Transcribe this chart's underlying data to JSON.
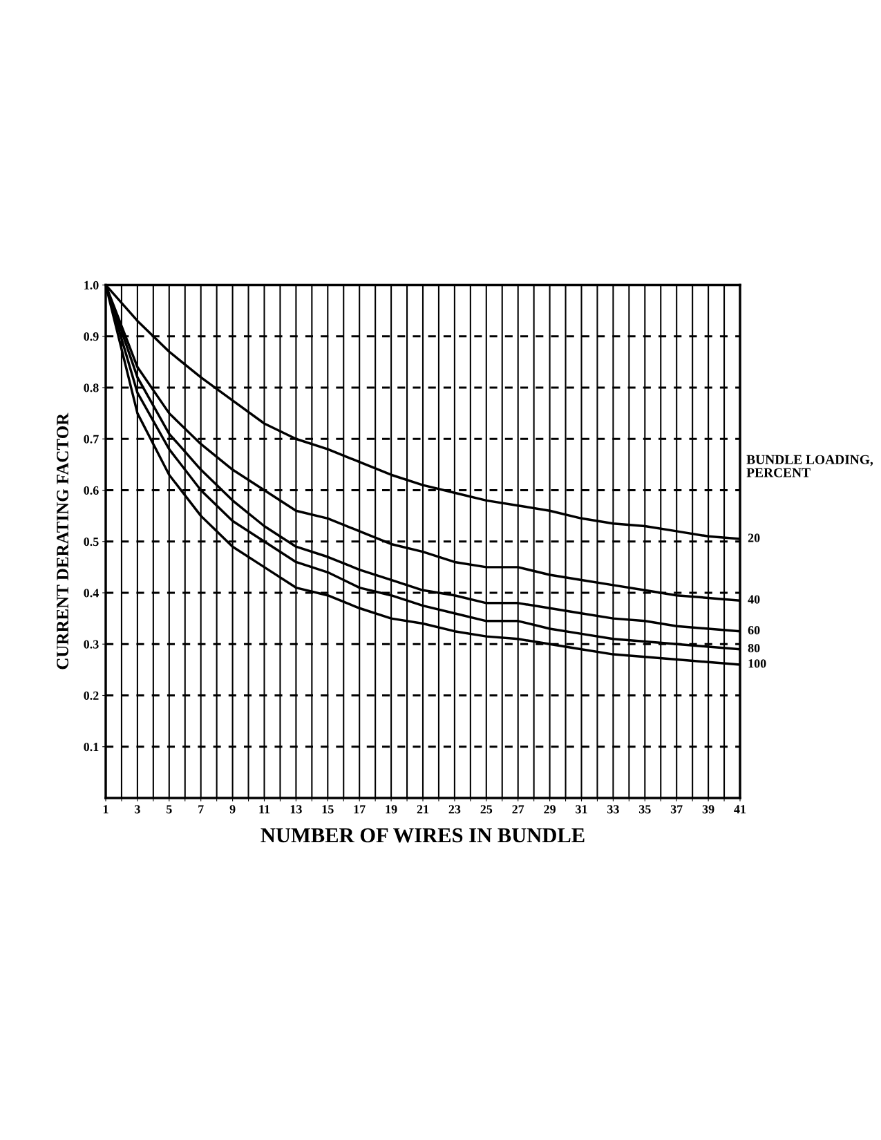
{
  "chart_data": {
    "type": "line",
    "xlabel": "NUMBER OF WIRES IN BUNDLE",
    "ylabel": "CURRENT DERATING FACTOR",
    "legend_title": "BUNDLE LOADING,\nPERCENT",
    "x": [
      1,
      3,
      5,
      7,
      9,
      11,
      13,
      15,
      17,
      19,
      21,
      23,
      25,
      27,
      29,
      31,
      33,
      35,
      37,
      39,
      41
    ],
    "series": [
      {
        "name": "20",
        "color": "#000000",
        "values": [
          1.0,
          0.93,
          0.87,
          0.82,
          0.775,
          0.73,
          0.7,
          0.68,
          0.655,
          0.63,
          0.61,
          0.595,
          0.58,
          0.57,
          0.56,
          0.545,
          0.535,
          0.53,
          0.52,
          0.51,
          0.505
        ]
      },
      {
        "name": "40",
        "color": "#000000",
        "values": [
          1.0,
          0.84,
          0.75,
          0.69,
          0.64,
          0.6,
          0.56,
          0.545,
          0.52,
          0.495,
          0.48,
          0.46,
          0.45,
          0.45,
          0.435,
          0.425,
          0.415,
          0.405,
          0.395,
          0.39,
          0.385
        ]
      },
      {
        "name": "60",
        "color": "#000000",
        "values": [
          1.0,
          0.82,
          0.71,
          0.64,
          0.58,
          0.53,
          0.49,
          0.47,
          0.445,
          0.425,
          0.405,
          0.395,
          0.38,
          0.38,
          0.37,
          0.36,
          0.35,
          0.345,
          0.335,
          0.33,
          0.325
        ]
      },
      {
        "name": "80",
        "color": "#000000",
        "values": [
          1.0,
          0.79,
          0.68,
          0.6,
          0.54,
          0.5,
          0.46,
          0.44,
          0.41,
          0.395,
          0.375,
          0.36,
          0.345,
          0.345,
          0.33,
          0.32,
          0.31,
          0.305,
          0.3,
          0.295,
          0.29
        ]
      },
      {
        "name": "100",
        "color": "#000000",
        "values": [
          1.0,
          0.75,
          0.63,
          0.55,
          0.49,
          0.45,
          0.41,
          0.395,
          0.37,
          0.35,
          0.34,
          0.325,
          0.315,
          0.31,
          0.3,
          0.29,
          0.28,
          0.275,
          0.27,
          0.265,
          0.26
        ]
      }
    ],
    "xlim": [
      1,
      41
    ],
    "ylim": [
      0,
      1.0
    ],
    "xticks": [
      1,
      {
        "value": 2,
        "label": null
      },
      3,
      {
        "value": 4,
        "label": null
      },
      5,
      {
        "value": 6,
        "label": null
      },
      7,
      {
        "value": 8,
        "label": null
      },
      9,
      {
        "value": 10,
        "label": null
      },
      11,
      {
        "value": 12,
        "label": null
      },
      13,
      {
        "value": 14,
        "label": null
      },
      15,
      {
        "value": 16,
        "label": null
      },
      17,
      {
        "value": 18,
        "label": null
      },
      19,
      {
        "value": 20,
        "label": null
      },
      21,
      {
        "value": 22,
        "label": null
      },
      23,
      {
        "value": 24,
        "label": null
      },
      25,
      {
        "value": 26,
        "label": null
      },
      27,
      {
        "value": 28,
        "label": null
      },
      29,
      {
        "value": 30,
        "label": null
      },
      31,
      {
        "value": 32,
        "label": null
      },
      33,
      {
        "value": 34,
        "label": null
      },
      35,
      {
        "value": 36,
        "label": null
      },
      37,
      {
        "value": 38,
        "label": null
      },
      39,
      {
        "value": 40,
        "label": null
      },
      41
    ],
    "yticks": [
      0.1,
      0.2,
      0.3,
      0.4,
      0.5,
      0.6,
      0.7,
      0.8,
      0.9,
      {
        "value": 1.0,
        "label": "1.0"
      }
    ],
    "grid": true,
    "marker": "none",
    "line_style": "solid"
  }
}
